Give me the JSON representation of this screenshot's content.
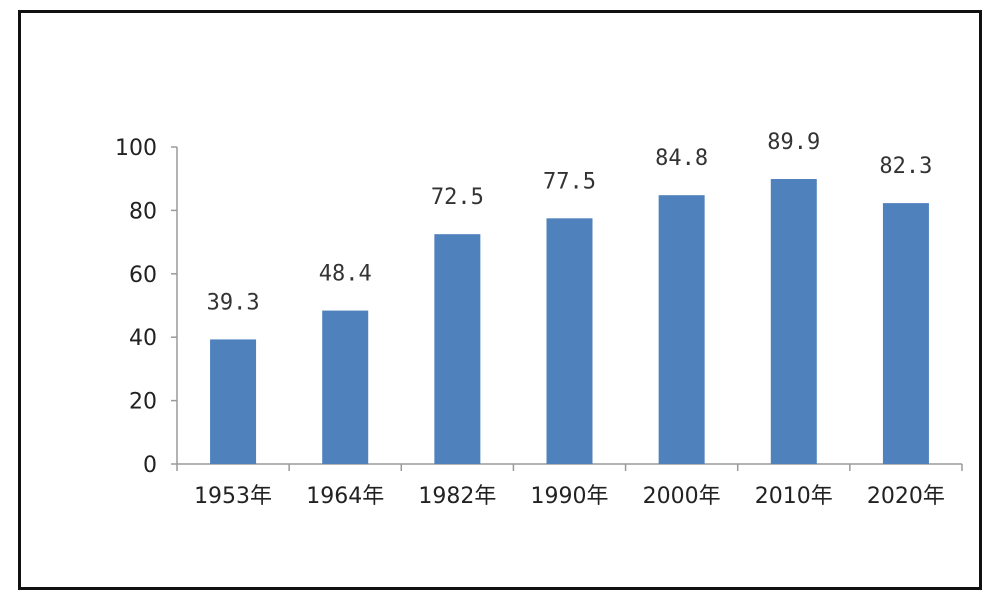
{
  "chart_data": {
    "type": "bar",
    "categories": [
      "1953年",
      "1964年",
      "1982年",
      "1990年",
      "2000年",
      "2010年",
      "2020年"
    ],
    "values": [
      39.3,
      48.4,
      72.5,
      77.5,
      84.8,
      89.9,
      82.3
    ],
    "data_labels": [
      "39.3",
      "48.4",
      "72.5",
      "77.5",
      "84.8",
      "89.9",
      "82.3"
    ],
    "title": "",
    "xlabel": "",
    "ylabel": "",
    "ylim": [
      0,
      100
    ],
    "y_ticks": [
      0,
      20,
      40,
      60,
      80,
      100
    ],
    "grid": false,
    "legend": "none",
    "bar_color": "#4f81bd"
  }
}
